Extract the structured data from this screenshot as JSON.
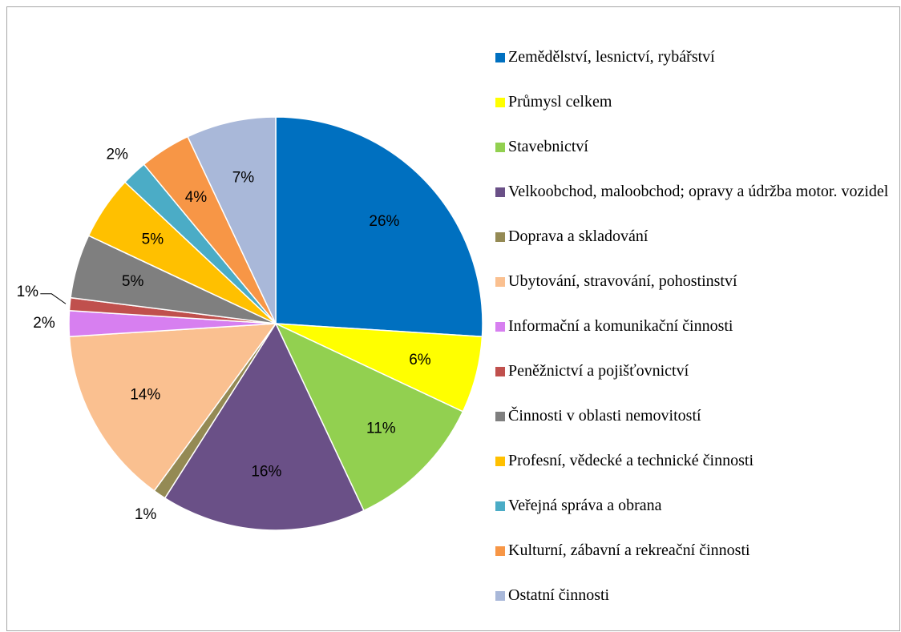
{
  "chart_data": {
    "type": "pie",
    "categories": [
      "Zemědělství, lesnictví, rybářství",
      "Průmysl celkem",
      "Stavebnictví",
      "Velkoobchod, maloobchod; opravy a údržba motor. vozidel",
      "Doprava a skladování",
      "Ubytování, stravování, pohostinství",
      "Informační a komunikační činnosti",
      "Peněžnictví a pojišťovnictví",
      "Činnosti v oblasti nemovitostí",
      "Profesní, vědecké a technické činnosti",
      "Veřejná správa a obrana",
      "Kulturní, zábavní a rekreační činnosti",
      "Ostatní činnosti"
    ],
    "values": [
      26,
      6,
      11,
      16,
      1,
      14,
      2,
      1,
      5,
      5,
      2,
      4,
      7
    ],
    "value_labels": [
      "26%",
      "6%",
      "11%",
      "16%",
      "1%",
      "14%",
      "2%",
      "1%",
      "5%",
      "5%",
      "2%",
      "4%",
      "7%"
    ],
    "colors": [
      "#0070c0",
      "#ffff00",
      "#92d050",
      "#6a5087",
      "#948a54",
      "#fac090",
      "#d77ff0",
      "#c0504d",
      "#7f7f7f",
      "#ffc000",
      "#4bacc6",
      "#f79646",
      "#a9b8d9"
    ],
    "legend": "right"
  }
}
